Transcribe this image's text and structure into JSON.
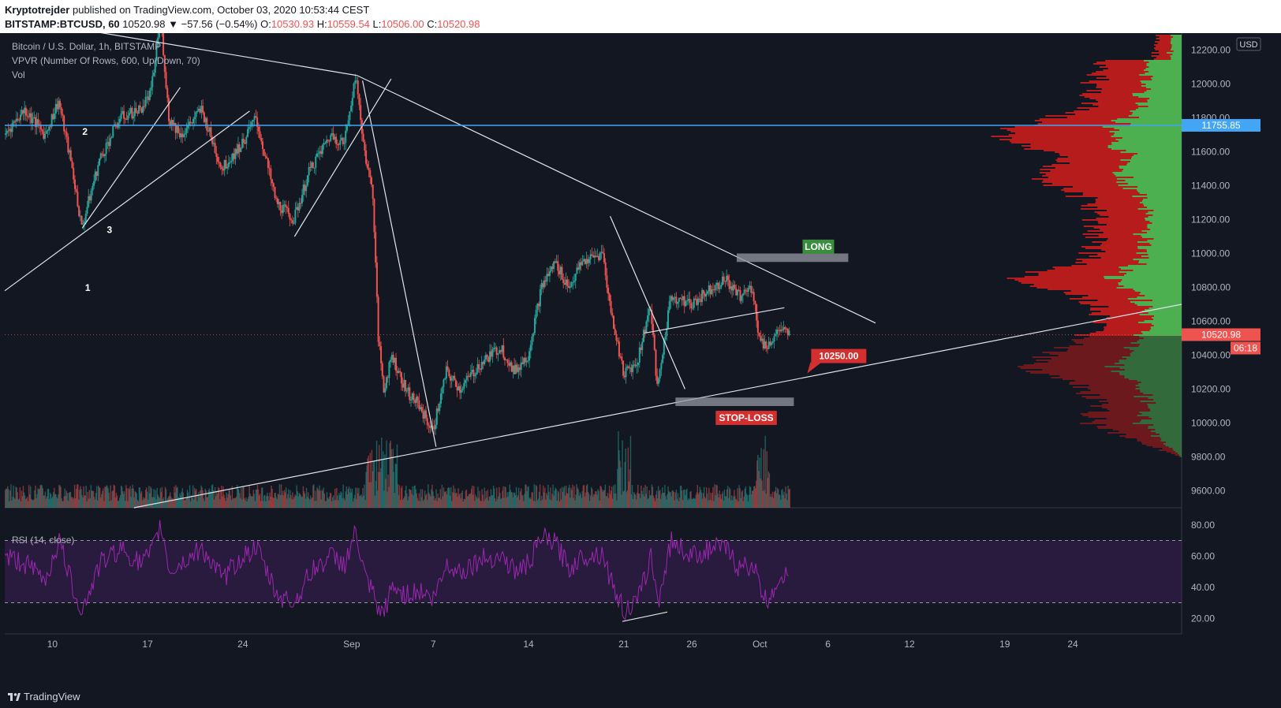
{
  "header": {
    "author": "Kryptotrejder",
    "published": "published on TradingView.com, October 03, 2020 10:53:44 CEST",
    "symbol": "BITSTAMP:BTCUSD, 60",
    "last": "10520.98",
    "change": "▼ −57.56 (−0.54%)",
    "o_label": "O:",
    "o": "10530.93",
    "h_label": "H:",
    "h": "10559.54",
    "l_label": "L:",
    "l": "10506.00",
    "c_label": "C:",
    "c": "10520.98"
  },
  "legend": {
    "series": "Bitcoin / U.S. Dollar, 1h, BITSTAMP",
    "vpvr": "VPVR (Number Of Rows, 600, Up/Down, 70)",
    "vol": "Vol",
    "rsi": "RSI (14, close)"
  },
  "price_axis": {
    "currency": "USD",
    "ticks": [
      "12200.00",
      "12000.00",
      "11800.00",
      "11600.00",
      "11400.00",
      "11200.00",
      "11000.00",
      "10800.00",
      "10600.00",
      "10400.00",
      "10200.00",
      "10000.00",
      "9800.00",
      "9600.00"
    ],
    "tick_values": [
      12200,
      12000,
      11800,
      11600,
      11400,
      11200,
      11000,
      10800,
      10600,
      10400,
      10200,
      10000,
      9800,
      9600
    ],
    "hline_label": "11755.85",
    "hline_value": 11755.85,
    "last_label": "10520.98",
    "last_value": 10520.98,
    "countdown": "06:18"
  },
  "rsi_axis": {
    "ticks": [
      "80.00",
      "60.00",
      "40.00",
      "20.00"
    ],
    "tick_values": [
      80,
      60,
      40,
      20
    ],
    "upper": 70,
    "lower": 30
  },
  "time_axis": {
    "labels": [
      "10",
      "17",
      "24",
      "Sep",
      "7",
      "14",
      "21",
      "26",
      "Oct",
      "6",
      "12",
      "19",
      "24"
    ],
    "label_days": [
      10,
      17,
      24,
      32,
      38,
      45,
      52,
      57,
      62,
      67,
      73,
      80,
      85
    ]
  },
  "annotations": {
    "long": "LONG",
    "stop": "STOP-LOSS",
    "target": "10250.00",
    "points": [
      "1",
      "2",
      "3"
    ]
  },
  "colors": {
    "background": "#131722",
    "up": "#26a69a",
    "down": "#ef5350",
    "hline": "#42a5f5",
    "rsi": "#9c27b0",
    "long_label": "#388e3c",
    "stop_label": "#d32f2f",
    "vpvr_up": "#4caf50",
    "vpvr_down": "#b71c1c"
  },
  "chart_data": {
    "type": "candlestick",
    "x_unit": "day (Aug 2020 = day number; Sep 1 = 32)",
    "price_path": [
      [
        6.5,
        11700
      ],
      [
        8,
        11850
      ],
      [
        9.5,
        11700
      ],
      [
        10.5,
        11900
      ],
      [
        11.5,
        11500
      ],
      [
        12.2,
        11150
      ],
      [
        13.5,
        11550
      ],
      [
        15,
        11800
      ],
      [
        16.5,
        11850
      ],
      [
        17.3,
        11950
      ],
      [
        18,
        12400
      ],
      [
        18.6,
        11800
      ],
      [
        19.5,
        11700
      ],
      [
        21,
        11850
      ],
      [
        22.5,
        11500
      ],
      [
        24,
        11650
      ],
      [
        25,
        11800
      ],
      [
        26.5,
        11300
      ],
      [
        27.8,
        11200
      ],
      [
        29,
        11500
      ],
      [
        30.5,
        11700
      ],
      [
        31.5,
        11650
      ],
      [
        32.3,
        12050
      ],
      [
        33,
        11600
      ],
      [
        33.6,
        11350
      ],
      [
        34,
        10500
      ],
      [
        34.4,
        10200
      ],
      [
        35,
        10400
      ],
      [
        36,
        10200
      ],
      [
        37,
        10100
      ],
      [
        38,
        9950
      ],
      [
        39,
        10300
      ],
      [
        40,
        10200
      ],
      [
        41.5,
        10350
      ],
      [
        43,
        10450
      ],
      [
        44,
        10300
      ],
      [
        45,
        10400
      ],
      [
        46,
        10800
      ],
      [
        47,
        10950
      ],
      [
        48,
        10800
      ],
      [
        49,
        10950
      ],
      [
        50.5,
        11000
      ],
      [
        51,
        10700
      ],
      [
        52,
        10300
      ],
      [
        53,
        10350
      ],
      [
        54,
        10700
      ],
      [
        54.5,
        10200
      ],
      [
        55.5,
        10750
      ],
      [
        57,
        10700
      ],
      [
        58.5,
        10800
      ],
      [
        59.5,
        10850
      ],
      [
        60.5,
        10750
      ],
      [
        61.5,
        10800
      ],
      [
        62,
        10500
      ],
      [
        62.5,
        10450
      ],
      [
        63.5,
        10550
      ],
      [
        64.2,
        10520
      ]
    ],
    "hline": 11755.85,
    "last_price": 10520.98,
    "long_zone": [
      10950,
      11000
    ],
    "stop_zone": [
      10100,
      10150
    ],
    "target_price": 10250,
    "rsi_path": [
      [
        6.5,
        60
      ],
      [
        8,
        55
      ],
      [
        9.5,
        45
      ],
      [
        10.5,
        70
      ],
      [
        11.5,
        40
      ],
      [
        12.2,
        25
      ],
      [
        13.5,
        55
      ],
      [
        15,
        65
      ],
      [
        16.5,
        55
      ],
      [
        17.3,
        62
      ],
      [
        18,
        80
      ],
      [
        18.6,
        50
      ],
      [
        19.5,
        55
      ],
      [
        21,
        65
      ],
      [
        22.5,
        45
      ],
      [
        24,
        60
      ],
      [
        25,
        65
      ],
      [
        26.5,
        35
      ],
      [
        27.8,
        30
      ],
      [
        29,
        50
      ],
      [
        30.5,
        60
      ],
      [
        31.5,
        55
      ],
      [
        32.3,
        75
      ],
      [
        33,
        45
      ],
      [
        33.6,
        35
      ],
      [
        34,
        22
      ],
      [
        34.4,
        25
      ],
      [
        35,
        40
      ],
      [
        36,
        35
      ],
      [
        37,
        38
      ],
      [
        38,
        32
      ],
      [
        39,
        55
      ],
      [
        40,
        50
      ],
      [
        41.5,
        58
      ],
      [
        43,
        60
      ],
      [
        44,
        50
      ],
      [
        45,
        55
      ],
      [
        46,
        72
      ],
      [
        47,
        68
      ],
      [
        48,
        52
      ],
      [
        49,
        60
      ],
      [
        50.5,
        62
      ],
      [
        51,
        45
      ],
      [
        52,
        25
      ],
      [
        53,
        30
      ],
      [
        54,
        60
      ],
      [
        54.5,
        30
      ],
      [
        55.5,
        70
      ],
      [
        57,
        60
      ],
      [
        58.5,
        65
      ],
      [
        59.5,
        65
      ],
      [
        60.5,
        52
      ],
      [
        61.5,
        55
      ],
      [
        62,
        40
      ],
      [
        62.5,
        30
      ],
      [
        63.5,
        48
      ],
      [
        64.2,
        45
      ]
    ],
    "ylim": [
      9500,
      12300
    ],
    "rsi_ylim": [
      10,
      90
    ],
    "xlim": [
      6.5,
      93
    ]
  }
}
